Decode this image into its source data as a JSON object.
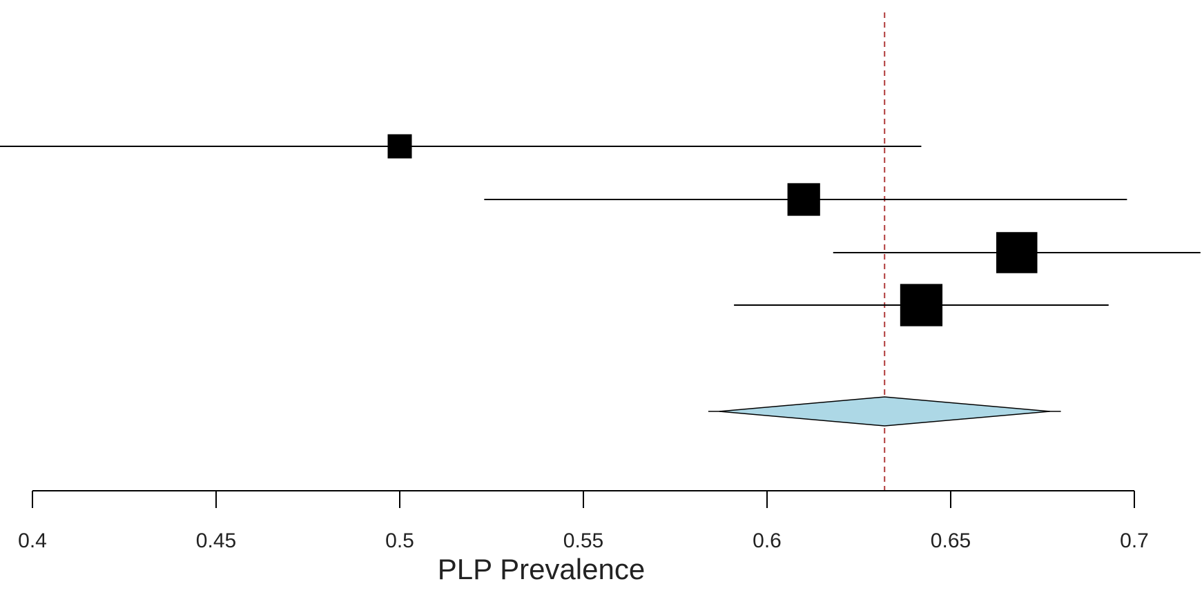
{
  "chart_data": {
    "type": "forest",
    "title": "",
    "xlabel": "PLP Prevalence",
    "ylabel": "",
    "xlim": [
      0.4,
      0.7
    ],
    "xticks": [
      0.4,
      0.45,
      0.5,
      0.55,
      0.6,
      0.65,
      0.7
    ],
    "xtick_labels": [
      "0.4",
      "0.45",
      "0.5",
      "0.55",
      "0.6",
      "0.65",
      "0.7"
    ],
    "grid": false,
    "reference_line": {
      "value": 0.632,
      "style": "dashed",
      "color": "#b03a3a"
    },
    "studies": [
      {
        "estimate": 0.5,
        "ci_low": 0.355,
        "ci_high": 0.642,
        "weight": 1.0
      },
      {
        "estimate": 0.61,
        "ci_low": 0.523,
        "ci_high": 0.698,
        "weight": 1.35
      },
      {
        "estimate": 0.668,
        "ci_low": 0.618,
        "ci_high": 0.718,
        "weight": 1.7
      },
      {
        "estimate": 0.642,
        "ci_low": 0.591,
        "ci_high": 0.693,
        "weight": 1.75
      }
    ],
    "summary": {
      "estimate": 0.632,
      "ci_low": 0.587,
      "ci_high": 0.677,
      "pi_low": 0.584,
      "pi_high": 0.68
    },
    "colors": {
      "marker": "#000000",
      "ci_line": "#000000",
      "diamond_fill": "#add8e6",
      "diamond_stroke": "#000000",
      "axis": "#000000",
      "reference": "#b03a3a"
    }
  }
}
